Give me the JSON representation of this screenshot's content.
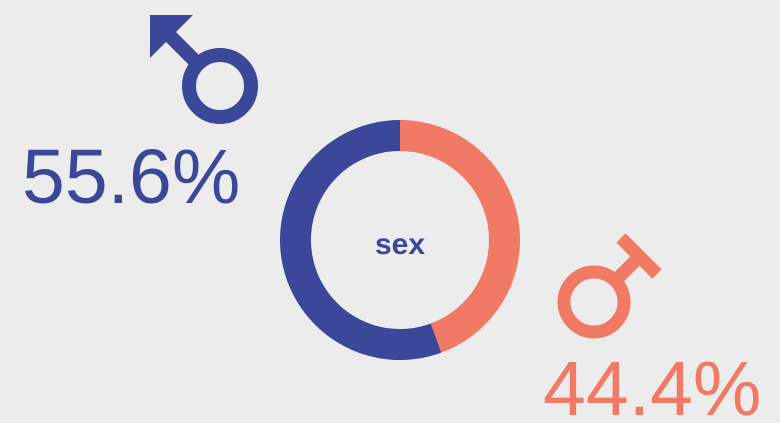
{
  "chart_data": {
    "type": "pie",
    "donut": true,
    "center_label": "sex",
    "values": [
      55.6,
      44.4
    ],
    "value_labels": [
      "55.6%",
      "44.4%"
    ],
    "colors": [
      "#3b4799",
      "#f07a65"
    ]
  }
}
